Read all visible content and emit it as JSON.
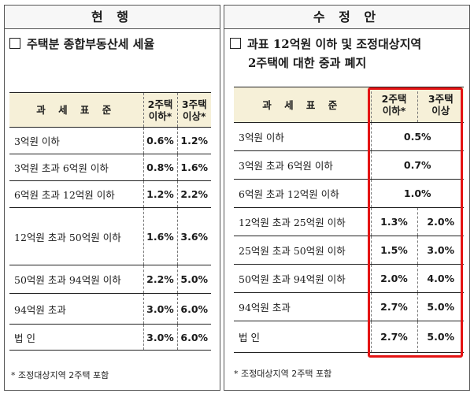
{
  "left": {
    "title": "현 행",
    "heading": "주택분 종합부동산세 세율",
    "headers": [
      "과 세 표 준",
      "2주택 이하*",
      "3주택 이상*"
    ],
    "rows": [
      {
        "cat": "3억원 이하",
        "v2": "0.6%",
        "v3": "1.2%"
      },
      {
        "cat": "3억원 초과 6억원 이하",
        "v2": "0.8%",
        "v3": "1.6%"
      },
      {
        "cat": "6억원 초과 12억원 이하",
        "v2": "1.2%",
        "v3": "2.2%"
      },
      {
        "cat": "12억원 초과 50억원 이하",
        "v2": "1.6%",
        "v3": "3.6%"
      },
      {
        "cat": "50억원 초과 94억원 이하",
        "v2": "2.2%",
        "v3": "5.0%"
      },
      {
        "cat": "94억원 초과",
        "v2": "3.0%",
        "v3": "6.0%"
      },
      {
        "cat": "법 인",
        "v2": "3.0%",
        "v3": "6.0%"
      }
    ],
    "note": "* 조정대상지역 2주택 포함"
  },
  "right": {
    "title": "수 정 안",
    "heading_line1": "과표 12억원 이하 및 조정대상지역",
    "heading_line2": "2주택에 대한 중과 폐지",
    "headers": [
      "과 세 표 준",
      "2주택 이하*",
      "3주택 이상"
    ],
    "rows": [
      {
        "cat": "3억원 이하",
        "v": "0.5%"
      },
      {
        "cat": "3억원 초과 6억원 이하",
        "v": "0.7%"
      },
      {
        "cat": "6억원 초과 12억원 이하",
        "v": "1.0%"
      },
      {
        "cat": "12억원 초과 25억원 이하",
        "v2": "1.3%",
        "v3": "2.0%"
      },
      {
        "cat": "25억원 초과 50억원 이하",
        "v2": "1.5%",
        "v3": "3.0%"
      },
      {
        "cat": "50억원 초과 94억원 이하",
        "v2": "2.0%",
        "v3": "4.0%"
      },
      {
        "cat": "94억원 초과",
        "v2": "2.7%",
        "v3": "5.0%"
      },
      {
        "cat": "법 인",
        "v2": "2.7%",
        "v3": "5.0%"
      }
    ],
    "note": "* 조정대상지역 2주택 포함"
  },
  "colors": {
    "highlight": "#e41414",
    "header_bg": "#f6f0d8"
  }
}
